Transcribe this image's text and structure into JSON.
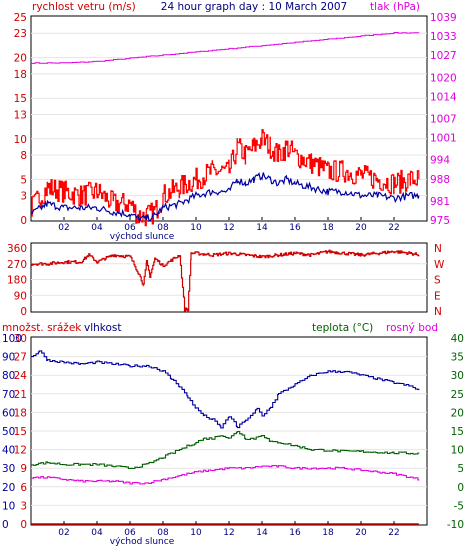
{
  "chart_data": [
    {
      "type": "line",
      "title": "24 hour graph day : 10 March 2007",
      "ylabel": "rychlost vetru (m/s)",
      "y2label": "tlak (hPa)",
      "ylim": [
        0,
        25
      ],
      "yticks": [
        0,
        3,
        5,
        8,
        10,
        13,
        15,
        18,
        20,
        23,
        25
      ],
      "y2lim": [
        975,
        1039
      ],
      "y2ticks": [
        975,
        981,
        988,
        994,
        1001,
        1007,
        1014,
        1020,
        1027,
        1033,
        1039
      ],
      "xticks": [
        "02",
        "04",
        "06",
        "08",
        "10",
        "12",
        "14",
        "16",
        "18",
        "20",
        "22"
      ],
      "annotation": "východ slunce",
      "colors": {
        "gust": "#ff0000",
        "wind": "#0000a0",
        "pressure": "#e000e0",
        "axis_left": "#d00000",
        "axis_right": "#e000e0"
      },
      "series": [
        {
          "id": "gust",
          "x": [
            0,
            1,
            2,
            3,
            4,
            5,
            6,
            6.5,
            7,
            7.5,
            8,
            9,
            10,
            11,
            12,
            12.5,
            13,
            13.5,
            14,
            14.5,
            15,
            15.5,
            16,
            17,
            18,
            19,
            20,
            21,
            22,
            23,
            23.5
          ],
          "values": [
            1.5,
            4,
            3.5,
            3,
            3.5,
            2,
            2,
            0.5,
            0.5,
            1,
            3,
            4,
            5,
            6,
            6,
            9,
            8,
            9,
            10,
            9,
            8,
            9,
            8,
            7,
            6,
            6,
            5.5,
            5,
            4.5,
            5,
            5
          ]
        },
        {
          "id": "wind",
          "x": [
            0,
            1,
            2,
            3,
            4,
            5,
            6,
            6.5,
            7,
            7.5,
            8,
            9,
            10,
            11,
            12,
            12.5,
            13,
            13.5,
            14,
            14.5,
            15,
            15.5,
            16,
            17,
            18,
            19,
            20,
            21,
            22,
            23,
            23.5
          ],
          "values": [
            0.7,
            2,
            1.5,
            1.5,
            1.5,
            1,
            0.7,
            0.2,
            0.2,
            0.5,
            1.5,
            2,
            3,
            3.5,
            3.5,
            5,
            4.5,
            5,
            5.5,
            5,
            4.5,
            5,
            4.5,
            4,
            3.5,
            3.5,
            3,
            3,
            2.7,
            3,
            3
          ]
        },
        {
          "id": "pressure",
          "x": [
            0,
            2,
            4,
            6,
            8,
            10,
            12,
            14,
            16,
            18,
            20,
            22,
            23.5
          ],
          "values": [
            1024.5,
            1024.5,
            1025,
            1026,
            1027,
            1028,
            1029,
            1030,
            1031,
            1032,
            1033,
            1034,
            1034
          ]
        }
      ]
    },
    {
      "type": "line",
      "ylim": [
        0,
        360
      ],
      "yticks": [
        0,
        90,
        180,
        270,
        360
      ],
      "compass": [
        "N",
        "W",
        "S",
        "E",
        "N"
      ],
      "colors": {
        "direction": "#d00000",
        "axis": "#d00000"
      },
      "series": [
        {
          "id": "direction",
          "x": [
            0,
            1,
            2,
            3,
            3.5,
            4,
            4.5,
            5,
            6,
            6.5,
            6.8,
            7,
            7.2,
            7.5,
            8,
            9,
            9.3,
            9.5,
            9.7,
            10,
            11,
            12,
            13,
            14,
            15,
            16,
            17,
            18,
            19,
            20,
            21,
            22,
            23,
            23.5
          ],
          "values": [
            270,
            270,
            280,
            280,
            320,
            280,
            300,
            320,
            310,
            220,
            150,
            280,
            200,
            300,
            260,
            320,
            10,
            10,
            330,
            330,
            320,
            330,
            320,
            310,
            320,
            330,
            320,
            340,
            330,
            320,
            330,
            340,
            330,
            320
          ]
        }
      ]
    },
    {
      "type": "line",
      "ylabel": "množst. srážek",
      "ylabel2": "vlhkost",
      "y2label": "teplota (°C)",
      "y3label": "rosný bod",
      "ylim_precip": [
        0,
        30
      ],
      "yticks_precip": [
        0,
        3,
        6,
        9,
        12,
        15,
        18,
        21,
        24,
        27,
        30
      ],
      "ylim_humidity": [
        0,
        100
      ],
      "yticks_humidity": [
        0,
        10,
        20,
        30,
        40,
        50,
        60,
        70,
        80,
        90,
        100
      ],
      "y2lim": [
        -10,
        40
      ],
      "y2ticks": [
        -10,
        -5,
        0,
        5,
        10,
        15,
        20,
        25,
        30,
        35,
        40
      ],
      "xticks": [
        "02",
        "04",
        "06",
        "08",
        "10",
        "12",
        "14",
        "16",
        "18",
        "20",
        "22"
      ],
      "annotation": "východ slunce",
      "colors": {
        "precip": "#d00000",
        "humidity": "#0000a0",
        "temperature": "#006000",
        "dewpoint": "#e000e0",
        "axis_right": "#006000"
      },
      "series": [
        {
          "id": "humidity",
          "x": [
            0,
            0.5,
            1,
            2,
            3,
            4,
            5,
            6,
            7,
            7.5,
            8,
            8.5,
            9,
            9.5,
            10,
            10.5,
            11,
            11.5,
            12,
            12.5,
            13,
            13.3,
            13.7,
            14,
            14.5,
            15,
            16,
            17,
            18,
            19,
            20,
            21,
            22,
            23,
            23.5
          ],
          "values": [
            90,
            93,
            88,
            87,
            86,
            87,
            86,
            85,
            85,
            84,
            82,
            78,
            74,
            68,
            62,
            58,
            56,
            52,
            58,
            52,
            56,
            58,
            62,
            58,
            63,
            70,
            75,
            80,
            82,
            82,
            80,
            78,
            76,
            74,
            72
          ]
        },
        {
          "id": "temperature",
          "x": [
            0,
            1,
            2,
            3,
            4,
            5,
            6,
            7,
            8,
            9,
            10,
            10.5,
            11,
            11.5,
            12,
            12.5,
            13,
            13.5,
            14,
            14.5,
            15,
            16,
            17,
            18,
            19,
            20,
            21,
            22,
            23,
            23.5
          ],
          "values": [
            6,
            6.5,
            6,
            6,
            6,
            5.5,
            5,
            6,
            8,
            10,
            12,
            13,
            13,
            14,
            13,
            15,
            13,
            13,
            14,
            12,
            12,
            11,
            10,
            9.8,
            9.5,
            9.5,
            9.3,
            9.1,
            9,
            9
          ]
        },
        {
          "id": "dewpoint",
          "x": [
            0,
            1,
            2,
            3,
            4,
            5,
            6,
            7,
            8,
            9,
            10,
            11,
            12,
            13,
            14,
            15,
            16,
            17,
            18,
            19,
            20,
            21,
            22,
            23,
            23.5
          ],
          "values": [
            2.5,
            2.5,
            2,
            1.5,
            1.5,
            1.5,
            1,
            1,
            2,
            3,
            4,
            4.5,
            5,
            5,
            5.5,
            5.5,
            5,
            5,
            5,
            5,
            4.5,
            4,
            3.5,
            2.5,
            2
          ]
        },
        {
          "id": "precip",
          "x": [
            0,
            23.5
          ],
          "values": [
            0,
            0
          ]
        }
      ]
    }
  ]
}
